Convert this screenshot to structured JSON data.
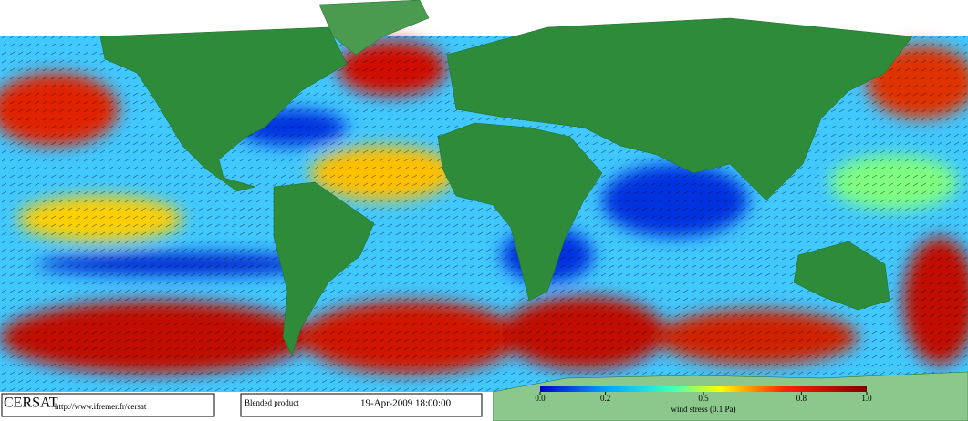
{
  "logo": "CERSAT",
  "url": "http://www.ifremer.fr/cersat",
  "product": "Blended product",
  "date": "19-Apr-2009 18:00:00",
  "colorbar": {
    "label": "wind stress (0.1 Pa)",
    "range": [
      0,
      1
    ],
    "ticks": [
      {
        "value": 0,
        "label": "0.0"
      },
      {
        "value": 0.2,
        "label": "0.2"
      },
      {
        "value": 0.5,
        "label": "0.5"
      },
      {
        "value": 0.8,
        "label": "0.8"
      },
      {
        "value": 1,
        "label": "1.0"
      }
    ]
  }
}
